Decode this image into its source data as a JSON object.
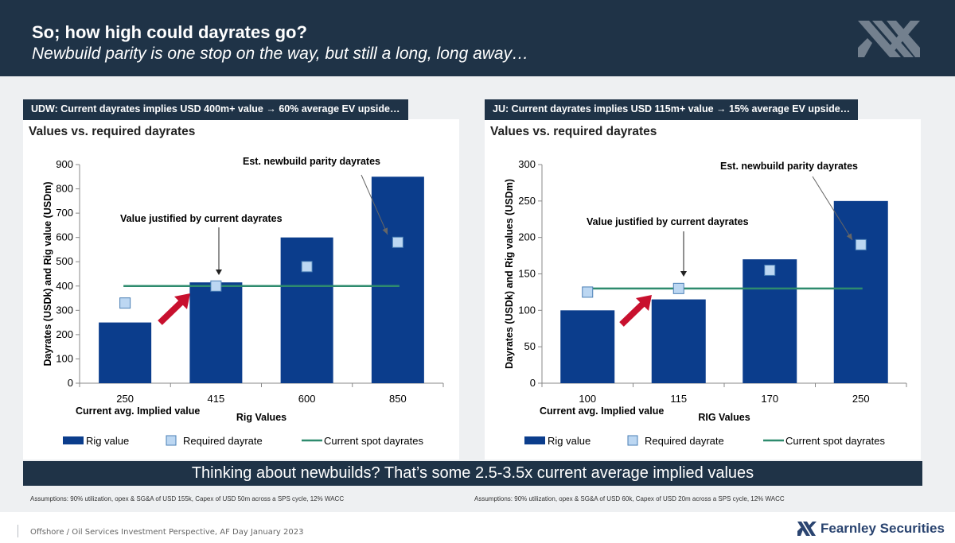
{
  "header": {
    "title": "So; how high could dayrates go?",
    "subtitle": "Newbuild parity is one stop on the way, but still a long, long away…"
  },
  "left": {
    "tab": "UDW: Current dayrates implies USD 400m+ value → 60% average EV upside…",
    "heading": "Values vs. required dayrates",
    "assumptions": "Assumptions: 90% utilization, opex & SG&A of USD 155k, Capex of USD 50m across a SPS cycle, 12% WACC"
  },
  "right": {
    "tab": "JU: Current dayrates implies USD 115m+ value → 15% average EV upside…",
    "heading": "Values vs. required dayrates",
    "assumptions": "Assumptions: 90% utilization, opex & SG&A of USD 60k, Capex of USD 20m across a SPS cycle, 12% WACC"
  },
  "banner": "Thinking about newbuilds? That’s some 2.5-3.5x current average implied values",
  "footer": {
    "text": "Offshore / Oil Services Investment Perspective, AF Day January 2023",
    "brand": "Fearnley Securities"
  },
  "colors": {
    "header_bg": "#1f3347",
    "bar": "#0b3d8c",
    "marker_fill": "#bcd7f2",
    "marker_stroke": "#4a7fb5",
    "spot_line": "#2e8b6e",
    "arrow": "#c8102e"
  },
  "chart_data": [
    {
      "type": "bar",
      "title": "Values vs. required dayrates",
      "categories": [
        "250",
        "415",
        "600",
        "850"
      ],
      "xlabel": "Rig Values",
      "ylabel": "Dayrates (USDk) and Rig value (USDm)",
      "ylim": [
        0,
        900
      ],
      "yticks": [
        0,
        100,
        200,
        300,
        400,
        500,
        600,
        700,
        800,
        900
      ],
      "series": [
        {
          "name": "Rig value",
          "kind": "bar",
          "values": [
            250,
            415,
            600,
            850
          ]
        },
        {
          "name": "Required dayrate",
          "kind": "marker",
          "values": [
            330,
            400,
            480,
            580
          ]
        },
        {
          "name": "Current spot dayrates",
          "kind": "line",
          "values": [
            400,
            400,
            400,
            400
          ]
        }
      ],
      "annotations": [
        {
          "text": "Value justified by current dayrates"
        },
        {
          "text": "Est. newbuild parity dayrates"
        },
        {
          "text": "Current avg. Implied value"
        }
      ],
      "legend": "bottom"
    },
    {
      "type": "bar",
      "title": "Values vs. required dayrates",
      "categories": [
        "100",
        "115",
        "170",
        "250"
      ],
      "xlabel": "RIG Values",
      "ylabel": "Dayrates (USDk) and Rig values (USDm)",
      "ylim": [
        0,
        300
      ],
      "yticks": [
        0,
        50,
        100,
        150,
        200,
        250,
        300
      ],
      "series": [
        {
          "name": "Rig value",
          "kind": "bar",
          "values": [
            100,
            115,
            170,
            250
          ]
        },
        {
          "name": "Required dayrate",
          "kind": "marker",
          "values": [
            125,
            130,
            155,
            190
          ]
        },
        {
          "name": "Current spot dayrates",
          "kind": "line",
          "values": [
            130,
            130,
            130,
            130
          ]
        }
      ],
      "annotations": [
        {
          "text": "Value justified by current dayrates"
        },
        {
          "text": "Est. newbuild parity dayrates"
        },
        {
          "text": "Current avg. Implied value"
        }
      ],
      "legend": "bottom"
    }
  ]
}
